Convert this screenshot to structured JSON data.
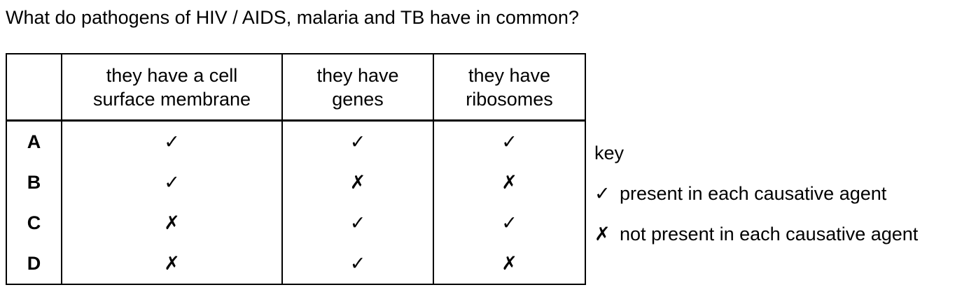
{
  "question": "What do pathogens of HIV / AIDS, malaria and TB have in common?",
  "table": {
    "headers": [
      "",
      "they have a cell surface membrane",
      "they have genes",
      "they have ribosomes"
    ],
    "header_lines": [
      [],
      [
        "they have a cell",
        "surface membrane"
      ],
      [
        "they have",
        "genes"
      ],
      [
        "they have",
        "ribosomes"
      ]
    ],
    "rows": [
      {
        "letter": "A",
        "cells": [
          "✓",
          "✓",
          "✓"
        ]
      },
      {
        "letter": "B",
        "cells": [
          "✓",
          "✗",
          "✗"
        ]
      },
      {
        "letter": "C",
        "cells": [
          "✗",
          "✓",
          "✓"
        ]
      },
      {
        "letter": "D",
        "cells": [
          "✗",
          "✓",
          "✗"
        ]
      }
    ]
  },
  "key": {
    "title": "key",
    "items": [
      {
        "symbol": "✓",
        "text": "present in each causative agent"
      },
      {
        "symbol": "✗",
        "text": "not present in each causative agent"
      }
    ]
  }
}
